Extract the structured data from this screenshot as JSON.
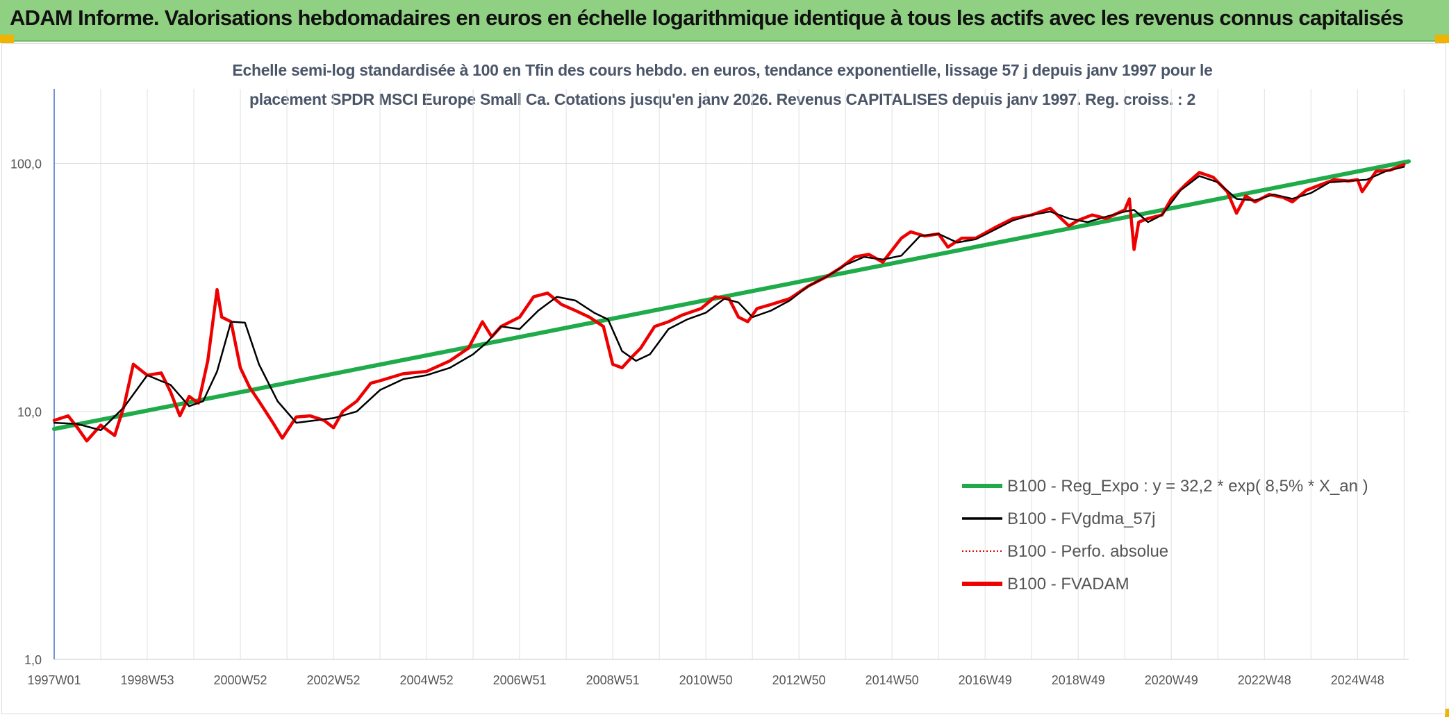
{
  "banner": {
    "title": "ADAM Informe. Valorisations hebdomadaires en euros en échelle logarithmique identique à tous les actifs avec les revenus connus capitalisés",
    "background": "#8fd082"
  },
  "chart_data": {
    "type": "line",
    "title": "",
    "subtitle_lines": [
      "Echelle semi-log standardisée à 100 en Tfin des cours hebdo. en euros, tendance exponentielle, lissage 57 j depuis janv 1997 pour le",
      "placement SPDR MSCI Europe Small Ca. Cotations jusqu'en janv 2026. Revenus CAPITALISES depuis janv 1997. Reg. croiss. : 2"
    ],
    "xlabel": "",
    "ylabel": "",
    "y_scale": "log",
    "ylim": [
      1,
      200
    ],
    "xlim": [
      1997.0,
      2026.1
    ],
    "y_ticks": [
      {
        "value": 1,
        "label": "1,0"
      },
      {
        "value": 10,
        "label": "10,0"
      },
      {
        "value": 100,
        "label": "100,0"
      }
    ],
    "x_ticks": [
      {
        "value": 1997.0,
        "label": "1997W01"
      },
      {
        "value": 1999.0,
        "label": "1998W53"
      },
      {
        "value": 2001.0,
        "label": "2000W52"
      },
      {
        "value": 2003.0,
        "label": "2002W52"
      },
      {
        "value": 2005.0,
        "label": "2004W52"
      },
      {
        "value": 2007.0,
        "label": "2006W51"
      },
      {
        "value": 2009.0,
        "label": "2008W51"
      },
      {
        "value": 2011.0,
        "label": "2010W50"
      },
      {
        "value": 2013.0,
        "label": "2012W50"
      },
      {
        "value": 2015.0,
        "label": "2014W50"
      },
      {
        "value": 2017.0,
        "label": "2016W49"
      },
      {
        "value": 2019.0,
        "label": "2018W49"
      },
      {
        "value": 2021.0,
        "label": "2020W49"
      },
      {
        "value": 2023.0,
        "label": "2022W48"
      },
      {
        "value": 2025.0,
        "label": "2024W48"
      }
    ],
    "grid": {
      "vertical": true,
      "horizontal": true
    },
    "legend_position": "bottom-right",
    "series": [
      {
        "name": "B100 - Reg_Expo : y = 32,2 * exp( 8,5% *  X_an )",
        "color": "#1fab4a",
        "style": "solid-thick",
        "x": [
          1997.0,
          2026.1
        ],
        "y": [
          8.5,
          102
        ]
      },
      {
        "name": "B100 - FVgdma_57j",
        "color": "#000000",
        "style": "solid-thin",
        "x": [
          1997.0,
          1997.5,
          1998.0,
          1998.5,
          1999.0,
          1999.5,
          1999.9,
          2000.2,
          2000.5,
          2000.8,
          2001.1,
          2001.4,
          2001.8,
          2002.2,
          2002.6,
          2003.0,
          2003.5,
          2004.0,
          2004.5,
          2005.0,
          2005.5,
          2006.0,
          2006.3,
          2006.6,
          2007.0,
          2007.4,
          2007.8,
          2008.2,
          2008.6,
          2008.9,
          2009.2,
          2009.5,
          2009.8,
          2010.2,
          2010.6,
          2011.0,
          2011.4,
          2011.7,
          2012.0,
          2012.4,
          2012.8,
          2013.2,
          2013.6,
          2014.0,
          2014.4,
          2014.8,
          2015.2,
          2015.6,
          2016.0,
          2016.4,
          2016.8,
          2017.2,
          2017.6,
          2018.0,
          2018.4,
          2018.8,
          2019.2,
          2019.6,
          2020.0,
          2020.2,
          2020.5,
          2020.8,
          2021.2,
          2021.6,
          2022.0,
          2022.4,
          2022.8,
          2023.2,
          2023.6,
          2024.0,
          2024.4,
          2024.8,
          2025.2,
          2025.6,
          2026.0
        ],
        "y": [
          9.0,
          8.9,
          8.4,
          10.4,
          14.0,
          12.8,
          10.5,
          11.0,
          14.5,
          23.0,
          22.8,
          15.5,
          11.0,
          9.0,
          9.2,
          9.4,
          10.0,
          12.2,
          13.5,
          14.0,
          15.0,
          17.0,
          19.0,
          22.0,
          21.5,
          25.5,
          29.0,
          28.0,
          25.0,
          23.5,
          17.5,
          16.0,
          17.0,
          21.5,
          23.5,
          25.0,
          28.5,
          27.5,
          24.0,
          25.5,
          28.0,
          32.0,
          35.0,
          39.0,
          42.0,
          41.0,
          42.5,
          51.0,
          52.0,
          48.0,
          49.5,
          54.0,
          59.0,
          62.0,
          64.0,
          60.0,
          58.0,
          61.0,
          64.0,
          65.0,
          58.0,
          62.0,
          78.0,
          89.0,
          84.0,
          72.0,
          71.0,
          75.0,
          72.0,
          76.0,
          84.0,
          85.0,
          86.0,
          93.0,
          97.0
        ]
      },
      {
        "name": "B100 - Perfo. absolue",
        "color": "#e00000",
        "style": "dotted",
        "x": [
          1997.0,
          1997.3,
          1997.5,
          1997.7,
          1998.0,
          1998.3,
          1998.5,
          1998.7,
          1999.0,
          1999.3,
          1999.5,
          1999.7,
          1999.9,
          2000.1,
          2000.3,
          2000.5,
          2000.6,
          2000.8,
          2001.0,
          2001.2,
          2001.4,
          2001.7,
          2001.9,
          2002.2,
          2002.5,
          2002.8,
          2003.0,
          2003.2,
          2003.5,
          2003.8,
          2004.0,
          2004.5,
          2005.0,
          2005.5,
          2005.9,
          2006.2,
          2006.4,
          2006.6,
          2007.0,
          2007.3,
          2007.6,
          2007.9,
          2008.2,
          2008.5,
          2008.8,
          2009.0,
          2009.2,
          2009.4,
          2009.6,
          2009.9,
          2010.2,
          2010.5,
          2010.9,
          2011.2,
          2011.5,
          2011.7,
          2011.9,
          2012.1,
          2012.4,
          2012.8,
          2013.2,
          2013.6,
          2013.9,
          2014.2,
          2014.5,
          2014.8,
          2015.2,
          2015.4,
          2015.7,
          2016.0,
          2016.2,
          2016.5,
          2016.8,
          2017.2,
          2017.6,
          2018.0,
          2018.4,
          2018.8,
          2019.0,
          2019.3,
          2019.6,
          2020.0,
          2020.1,
          2020.2,
          2020.3,
          2020.5,
          2020.8,
          2021.0,
          2021.3,
          2021.6,
          2021.9,
          2022.2,
          2022.4,
          2022.6,
          2022.8,
          2023.1,
          2023.4,
          2023.6,
          2023.9,
          2024.2,
          2024.5,
          2024.8,
          2025.0,
          2025.1,
          2025.4,
          2025.7,
          2026.0
        ],
        "y": [
          9.2,
          9.6,
          8.6,
          7.6,
          8.8,
          8.0,
          10.5,
          15.5,
          14.0,
          14.3,
          12.0,
          9.6,
          11.5,
          10.8,
          16.0,
          31.0,
          24.0,
          23.0,
          15.0,
          12.5,
          11.0,
          9.0,
          7.8,
          9.5,
          9.6,
          9.2,
          8.6,
          10.0,
          11.0,
          13.0,
          13.3,
          14.2,
          14.5,
          16.0,
          18.0,
          23.0,
          20.0,
          22.0,
          24.0,
          29.0,
          30.0,
          27.0,
          25.5,
          24.0,
          22.0,
          15.5,
          15.0,
          16.5,
          18.0,
          22.0,
          23.0,
          24.5,
          26.0,
          29.0,
          28.5,
          24.0,
          23.0,
          26.0,
          27.0,
          28.5,
          32.0,
          35.0,
          38.0,
          42.0,
          43.0,
          40.0,
          50.0,
          53.0,
          51.0,
          52.0,
          46.0,
          50.0,
          50.0,
          55.0,
          60.0,
          62.0,
          66.0,
          56.0,
          59.0,
          62.0,
          60.0,
          65.0,
          72.0,
          45.0,
          58.0,
          60.0,
          62.0,
          72.0,
          82.0,
          92.0,
          88.0,
          77.0,
          63.0,
          74.0,
          70.0,
          75.0,
          73.0,
          70.0,
          78.0,
          82.0,
          86.0,
          85.0,
          86.0,
          77.0,
          93.0,
          94.0,
          99.0
        ]
      },
      {
        "name": "B100 - FVADAM",
        "color": "#ee0000",
        "style": "solid-thick",
        "x": [
          1997.0,
          1997.3,
          1997.5,
          1997.7,
          1998.0,
          1998.3,
          1998.5,
          1998.7,
          1999.0,
          1999.3,
          1999.5,
          1999.7,
          1999.9,
          2000.1,
          2000.3,
          2000.5,
          2000.6,
          2000.8,
          2001.0,
          2001.2,
          2001.4,
          2001.7,
          2001.9,
          2002.2,
          2002.5,
          2002.8,
          2003.0,
          2003.2,
          2003.5,
          2003.8,
          2004.0,
          2004.5,
          2005.0,
          2005.5,
          2005.9,
          2006.2,
          2006.4,
          2006.6,
          2007.0,
          2007.3,
          2007.6,
          2007.9,
          2008.2,
          2008.5,
          2008.8,
          2009.0,
          2009.2,
          2009.4,
          2009.6,
          2009.9,
          2010.2,
          2010.5,
          2010.9,
          2011.2,
          2011.5,
          2011.7,
          2011.9,
          2012.1,
          2012.4,
          2012.8,
          2013.2,
          2013.6,
          2013.9,
          2014.2,
          2014.5,
          2014.8,
          2015.2,
          2015.4,
          2015.7,
          2016.0,
          2016.2,
          2016.5,
          2016.8,
          2017.2,
          2017.6,
          2018.0,
          2018.4,
          2018.8,
          2019.0,
          2019.3,
          2019.6,
          2020.0,
          2020.1,
          2020.2,
          2020.3,
          2020.5,
          2020.8,
          2021.0,
          2021.3,
          2021.6,
          2021.9,
          2022.2,
          2022.4,
          2022.6,
          2022.8,
          2023.1,
          2023.4,
          2023.6,
          2023.9,
          2024.2,
          2024.5,
          2024.8,
          2025.0,
          2025.1,
          2025.4,
          2025.7,
          2026.0
        ],
        "y": [
          9.2,
          9.6,
          8.6,
          7.6,
          8.8,
          8.0,
          10.5,
          15.5,
          14.0,
          14.3,
          12.0,
          9.6,
          11.5,
          10.8,
          16.0,
          31.0,
          24.0,
          23.0,
          15.0,
          12.5,
          11.0,
          9.0,
          7.8,
          9.5,
          9.6,
          9.2,
          8.6,
          10.0,
          11.0,
          13.0,
          13.3,
          14.2,
          14.5,
          16.0,
          18.0,
          23.0,
          20.0,
          22.0,
          24.0,
          29.0,
          30.0,
          27.0,
          25.5,
          24.0,
          22.0,
          15.5,
          15.0,
          16.5,
          18.0,
          22.0,
          23.0,
          24.5,
          26.0,
          29.0,
          28.5,
          24.0,
          23.0,
          26.0,
          27.0,
          28.5,
          32.0,
          35.0,
          38.0,
          42.0,
          43.0,
          40.0,
          50.0,
          53.0,
          51.0,
          52.0,
          46.0,
          50.0,
          50.0,
          55.0,
          60.0,
          62.0,
          66.0,
          56.0,
          59.0,
          62.0,
          60.0,
          65.0,
          72.0,
          45.0,
          58.0,
          60.0,
          62.0,
          72.0,
          82.0,
          92.0,
          88.0,
          77.0,
          63.0,
          74.0,
          70.0,
          75.0,
          73.0,
          70.0,
          78.0,
          82.0,
          86.0,
          85.0,
          86.0,
          77.0,
          93.0,
          94.0,
          99.0
        ]
      }
    ]
  }
}
